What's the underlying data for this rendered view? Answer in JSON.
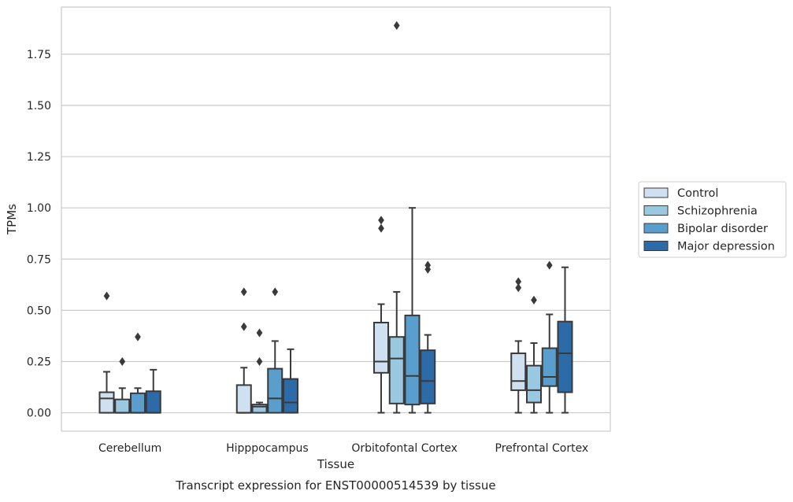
{
  "caption": "Transcript expression for ENST00000514539 by tissue",
  "chart_data": {
    "type": "boxplot",
    "xlabel": "Tissue",
    "ylabel": "TPMs",
    "ylim": [
      -0.09,
      1.98
    ],
    "yticks": [
      0.0,
      0.25,
      0.5,
      0.75,
      1.0,
      1.25,
      1.5,
      1.75
    ],
    "ytick_labels": [
      "0.00",
      "0.25",
      "0.50",
      "0.75",
      "1.00",
      "1.25",
      "1.50",
      "1.75"
    ],
    "grid": "horizontal",
    "legend_position": "right",
    "categories": [
      "Cerebellum",
      "Hipppocampus",
      "Orbitofontal Cortex",
      "Prefrontal Cortex"
    ],
    "series": [
      {
        "name": "Control",
        "color": "#cfe0f1",
        "boxes": [
          {
            "whislo": 0.0,
            "q1": 0.0,
            "med": 0.07,
            "q3": 0.1,
            "whishi": 0.2,
            "fliers": [
              0.57
            ]
          },
          {
            "whislo": 0.0,
            "q1": 0.0,
            "med": 0.0,
            "q3": 0.135,
            "whishi": 0.22,
            "fliers": [
              0.42,
              0.59
            ]
          },
          {
            "whislo": 0.0,
            "q1": 0.195,
            "med": 0.25,
            "q3": 0.44,
            "whishi": 0.53,
            "fliers": [
              0.9,
              0.94
            ]
          },
          {
            "whislo": 0.0,
            "q1": 0.11,
            "med": 0.155,
            "q3": 0.29,
            "whishi": 0.35,
            "fliers": [
              0.61,
              0.64
            ]
          }
        ]
      },
      {
        "name": "Schizophrenia",
        "color": "#9ac8e0",
        "boxes": [
          {
            "whislo": 0.0,
            "q1": 0.0,
            "med": 0.0,
            "q3": 0.065,
            "whishi": 0.12,
            "fliers": [
              0.25
            ]
          },
          {
            "whislo": 0.0,
            "q1": 0.0,
            "med": 0.03,
            "q3": 0.04,
            "whishi": 0.05,
            "fliers": [
              0.25,
              0.39
            ]
          },
          {
            "whislo": 0.0,
            "q1": 0.045,
            "med": 0.265,
            "q3": 0.37,
            "whishi": 0.59,
            "fliers": [
              1.89
            ]
          },
          {
            "whislo": 0.0,
            "q1": 0.05,
            "med": 0.11,
            "q3": 0.23,
            "whishi": 0.34,
            "fliers": [
              0.55
            ]
          }
        ]
      },
      {
        "name": "Bipolar disorder",
        "color": "#5a9ecd",
        "boxes": [
          {
            "whislo": 0.0,
            "q1": 0.0,
            "med": 0.0,
            "q3": 0.095,
            "whishi": 0.12,
            "fliers": [
              0.37
            ]
          },
          {
            "whislo": 0.0,
            "q1": 0.0,
            "med": 0.07,
            "q3": 0.215,
            "whishi": 0.35,
            "fliers": [
              0.59
            ]
          },
          {
            "whislo": 0.0,
            "q1": 0.04,
            "med": 0.18,
            "q3": 0.475,
            "whishi": 1.0,
            "fliers": []
          },
          {
            "whislo": 0.0,
            "q1": 0.13,
            "med": 0.175,
            "q3": 0.315,
            "whishi": 0.48,
            "fliers": [
              0.72
            ]
          }
        ]
      },
      {
        "name": "Major depression",
        "color": "#2c6aa8",
        "boxes": [
          {
            "whislo": 0.0,
            "q1": 0.0,
            "med": 0.0,
            "q3": 0.105,
            "whishi": 0.21,
            "fliers": []
          },
          {
            "whislo": 0.0,
            "q1": 0.0,
            "med": 0.05,
            "q3": 0.165,
            "whishi": 0.31,
            "fliers": []
          },
          {
            "whislo": 0.0,
            "q1": 0.045,
            "med": 0.155,
            "q3": 0.305,
            "whishi": 0.38,
            "fliers": [
              0.7,
              0.72
            ]
          },
          {
            "whislo": 0.0,
            "q1": 0.1,
            "med": 0.29,
            "q3": 0.445,
            "whishi": 0.71,
            "fliers": []
          }
        ]
      }
    ]
  }
}
